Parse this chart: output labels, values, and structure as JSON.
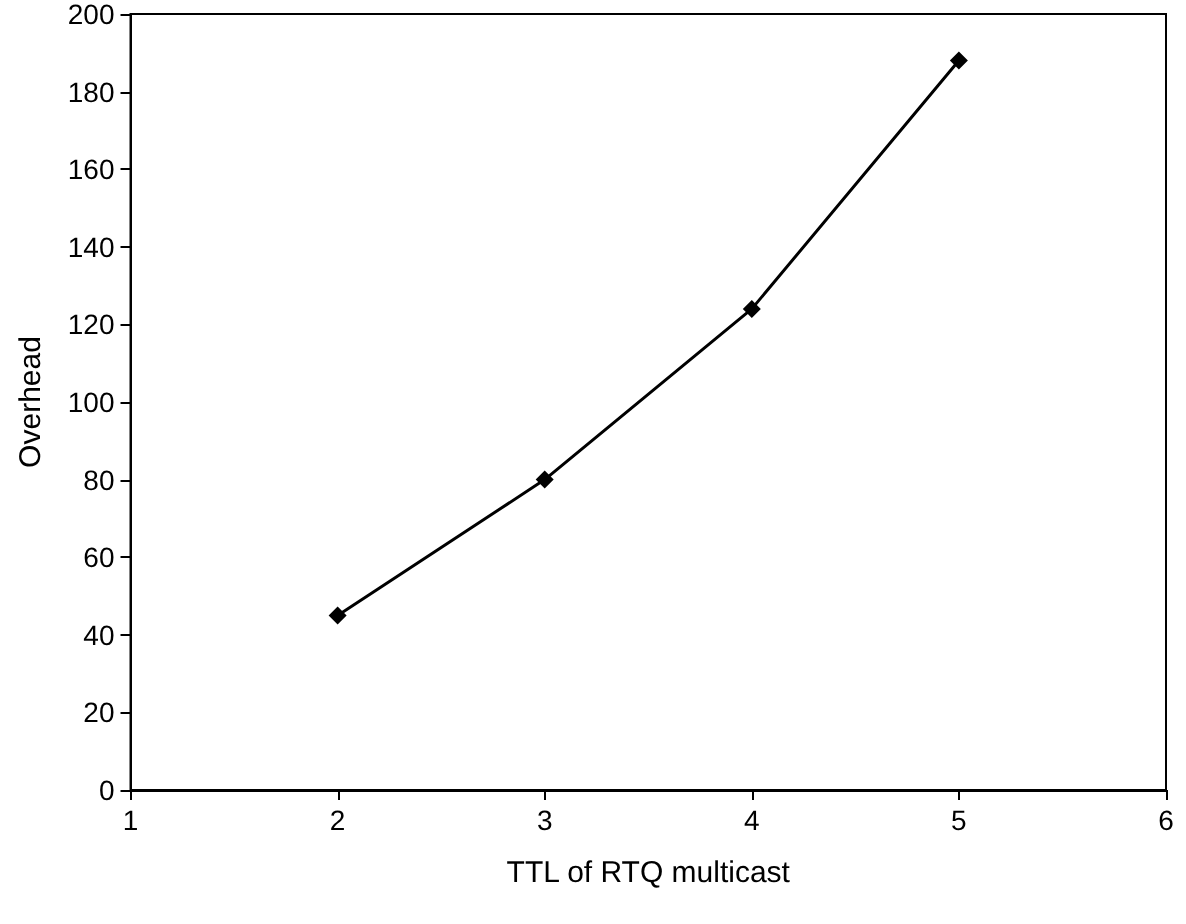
{
  "chart_data": {
    "type": "line",
    "xlabel": "TTL of RTQ multicast",
    "ylabel": "Overhead",
    "x": [
      2,
      3,
      4,
      5
    ],
    "series": [
      {
        "color": "#000000",
        "values": [
          45,
          80,
          124,
          188
        ]
      }
    ],
    "xlim": [
      1,
      6
    ],
    "xticks": [
      1,
      2,
      3,
      4,
      5,
      6
    ],
    "ylim": [
      0,
      200
    ],
    "yticks": [
      0,
      20,
      40,
      60,
      80,
      100,
      120,
      140,
      160,
      180,
      200
    ],
    "marker": "diamond",
    "line_style": "solid"
  }
}
